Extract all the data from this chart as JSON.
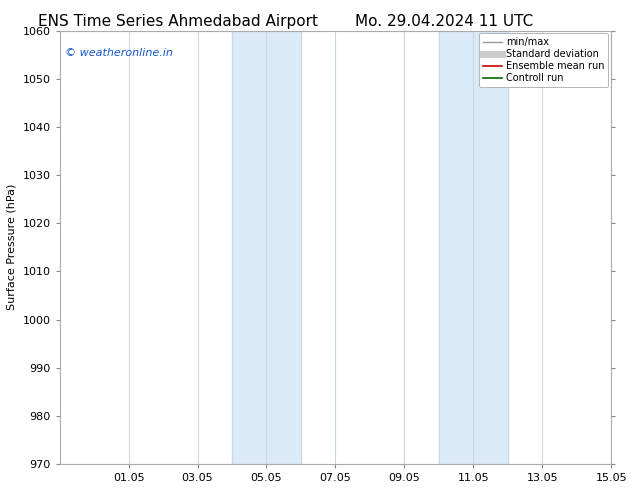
{
  "title_left": "ENS Time Series Ahmedabad Airport",
  "title_right": "Mo. 29.04.2024 11 UTC",
  "ylabel": "Surface Pressure (hPa)",
  "ylim": [
    970,
    1060
  ],
  "yticks": [
    970,
    980,
    990,
    1000,
    1010,
    1020,
    1030,
    1040,
    1050,
    1060
  ],
  "xlim": [
    0,
    16
  ],
  "xtick_labels": [
    "01.05",
    "03.05",
    "05.05",
    "07.05",
    "09.05",
    "11.05",
    "13.05",
    "15.05"
  ],
  "xtick_positions": [
    2,
    4,
    6,
    8,
    10,
    12,
    14,
    16
  ],
  "shaded_regions": [
    {
      "x_start": 5,
      "x_end": 7,
      "color": "#daeaf7"
    },
    {
      "x_start": 11,
      "x_end": 13,
      "color": "#daeaf7"
    }
  ],
  "watermark_text": "© weatheronline.in",
  "watermark_color": "#1155cc",
  "legend_items": [
    {
      "label": "min/max",
      "color": "#999999",
      "lw": 1.0,
      "style": "solid"
    },
    {
      "label": "Standard deviation",
      "color": "#cccccc",
      "lw": 5,
      "style": "solid"
    },
    {
      "label": "Ensemble mean run",
      "color": "#cc0000",
      "lw": 1.2,
      "style": "solid"
    },
    {
      "label": "Controll run",
      "color": "#006600",
      "lw": 1.2,
      "style": "solid"
    }
  ],
  "background_color": "#ffffff",
  "plot_bg_color": "#ffffff",
  "vline_color": "#c8d8e8",
  "title_fontsize": 11,
  "label_fontsize": 8,
  "tick_fontsize": 8,
  "watermark_fontsize": 8
}
